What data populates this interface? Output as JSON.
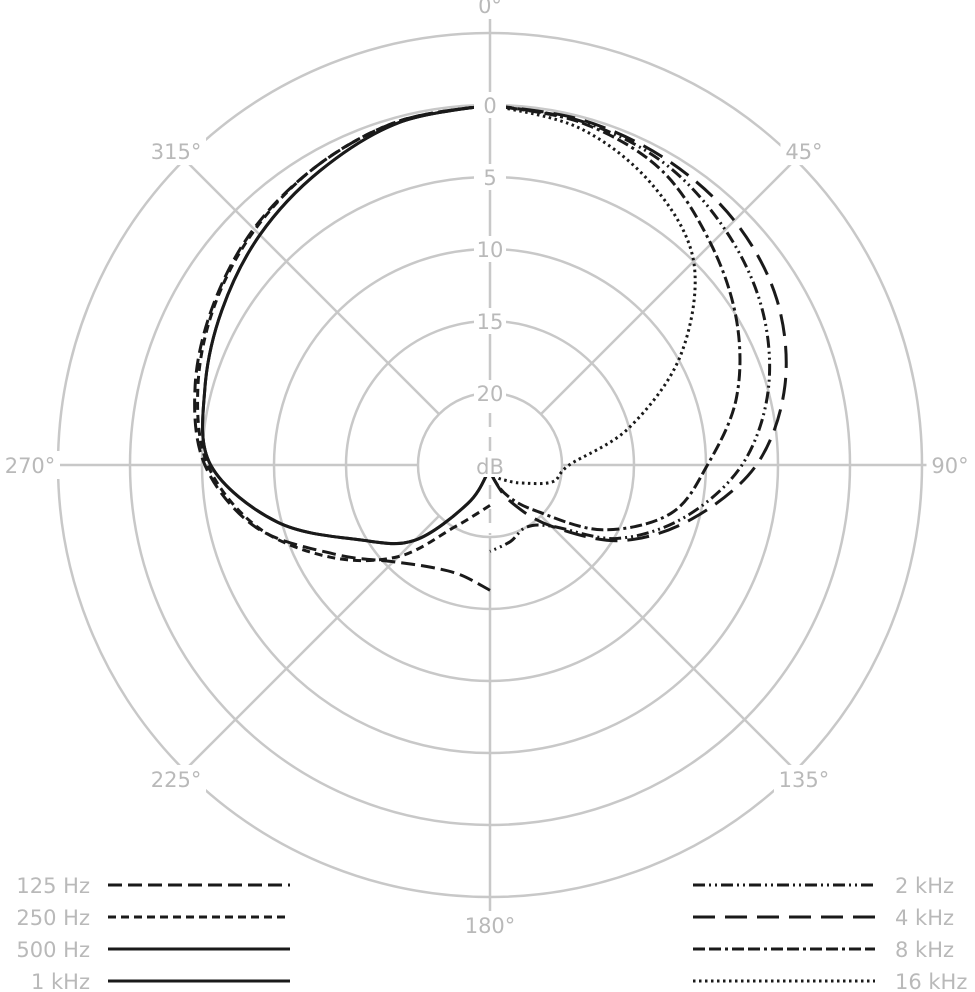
{
  "chart_data": {
    "type": "polar",
    "radial_unit": "dB",
    "radial_ticks": [
      0,
      5,
      10,
      15,
      20
    ],
    "radial_range": [
      -5,
      25
    ],
    "angle_ticks": [
      {
        "angle": 0,
        "label": "0°"
      },
      {
        "angle": 45,
        "label": "45°"
      },
      {
        "angle": 90,
        "label": "90°"
      },
      {
        "angle": 135,
        "label": "135°"
      },
      {
        "angle": 180,
        "label": "180°"
      },
      {
        "angle": 225,
        "label": "225°"
      },
      {
        "angle": 270,
        "label": "270°"
      },
      {
        "angle": 315,
        "label": "315°"
      }
    ],
    "grid": true,
    "grid_color": "#c8c8c8",
    "line_color": "#1a1a1a",
    "legend_placement": "bottom",
    "series": [
      {
        "name": "125 Hz",
        "style": "long-dash",
        "side": "left",
        "angles": [
          180,
          195,
          210,
          225,
          240,
          255,
          270,
          285,
          300,
          315,
          330,
          345,
          360
        ],
        "values": [
          16.3,
          17.1,
          16.8,
          15.5,
          12.6,
          8.2,
          5.2,
          3.8,
          2.8,
          1.8,
          1.0,
          0.3,
          0
        ]
      },
      {
        "name": "250 Hz",
        "style": "short-dash",
        "side": "left",
        "angles": [
          180,
          195,
          210,
          225,
          240,
          255,
          270,
          285,
          300,
          315,
          330,
          345,
          360
        ],
        "values": [
          22.2,
          21.5,
          20.0,
          16.0,
          12.2,
          8.3,
          5.4,
          4.0,
          2.9,
          1.9,
          1.0,
          0.3,
          0
        ]
      },
      {
        "name": "500 Hz",
        "style": "solid",
        "side": "left",
        "angles": [
          180,
          195,
          210,
          225,
          240,
          255,
          270,
          285,
          300,
          315,
          330,
          345,
          360
        ],
        "values": [
          25,
          24.5,
          21.9,
          17.6,
          14.6,
          9.7,
          5.6,
          4.5,
          3.5,
          2.4,
          1.4,
          0.4,
          0
        ]
      },
      {
        "name": "1 kHz",
        "style": "solid",
        "side": "left",
        "angles": [
          180,
          195,
          210,
          225,
          240,
          255,
          270,
          285,
          300,
          315,
          330,
          345,
          360
        ],
        "values": [
          25,
          24.5,
          21.9,
          17.6,
          14.6,
          9.7,
          5.6,
          4.5,
          3.5,
          2.4,
          1.4,
          0.4,
          0
        ]
      },
      {
        "name": "2 kHz",
        "style": "dash-dot-dot",
        "side": "right",
        "angles": [
          0,
          15,
          30,
          45,
          60,
          75,
          90,
          105,
          120,
          135,
          150,
          165,
          180
        ],
        "values": [
          0,
          0.3,
          0.8,
          1.9,
          3.2,
          5.0,
          7.5,
          11.0,
          14.8,
          19.0,
          20.0,
          19.5,
          19.0
        ]
      },
      {
        "name": "4 kHz",
        "style": "extra-long-dash",
        "side": "right",
        "angles": [
          0,
          15,
          30,
          45,
          60,
          75,
          90,
          105,
          120,
          135,
          150,
          165,
          180
        ],
        "values": [
          0,
          0.2,
          0.5,
          1.0,
          2.0,
          3.8,
          6.5,
          10.5,
          14.5,
          19.0,
          22.0,
          24.0,
          25.0
        ]
      },
      {
        "name": "8 kHz",
        "style": "dash-dash-dot",
        "side": "right",
        "angles": [
          0,
          15,
          30,
          45,
          60,
          75,
          90,
          105,
          120,
          135,
          150,
          165,
          180
        ],
        "values": [
          0,
          0.4,
          1.3,
          3.3,
          5.2,
          7.3,
          9.9,
          12.0,
          16.0,
          20.5,
          22.5,
          24.0,
          25.0
        ]
      },
      {
        "name": "16 kHz",
        "style": "dotted",
        "side": "right",
        "angles": [
          0,
          15,
          30,
          45,
          60,
          75,
          90,
          105,
          120,
          135,
          150,
          165,
          180
        ],
        "values": [
          0,
          0.8,
          2.5,
          5.0,
          9.7,
          15.0,
          19.5,
          20.5,
          22.5,
          23.5,
          24.0,
          24.5,
          25.0
        ]
      }
    ]
  }
}
